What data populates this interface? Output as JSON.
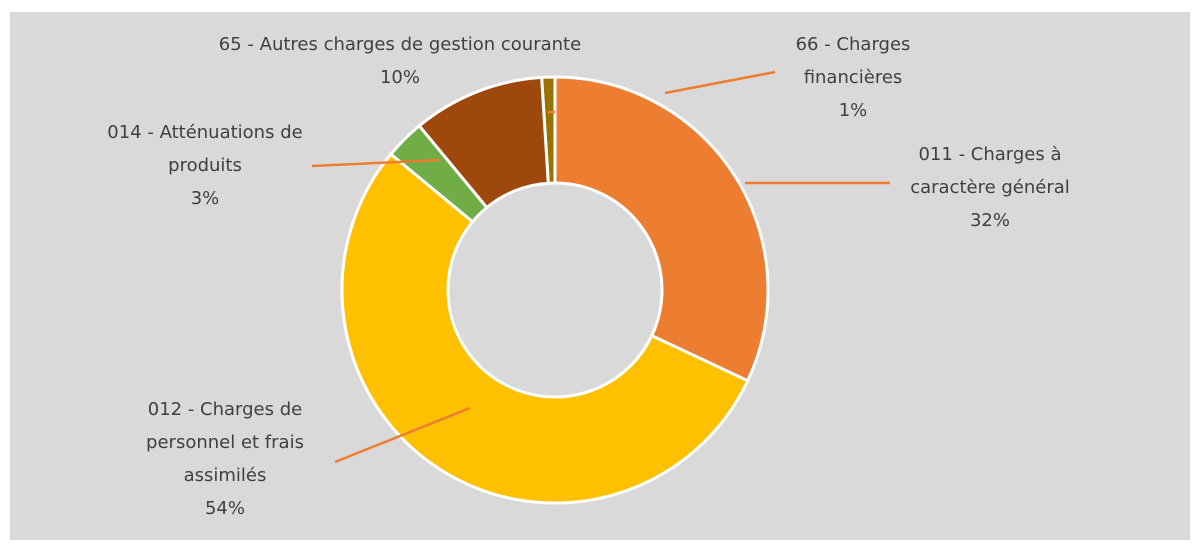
{
  "chart_data": {
    "type": "donut",
    "categories": [
      "011 - Charges à caractère général",
      "012 - Charges de personnel et frais assimilés",
      "014 - Atténuations de produits",
      "65 - Autres charges de gestion courante",
      "66 - Charges financières"
    ],
    "values": [
      32,
      54,
      3,
      10,
      1
    ],
    "value_labels": [
      "32%",
      "54%",
      "3%",
      "10%",
      "1%"
    ],
    "colors": [
      "#ed7d31",
      "#ffc000",
      "#70ad47",
      "#9e480e",
      "#997300"
    ]
  }
}
